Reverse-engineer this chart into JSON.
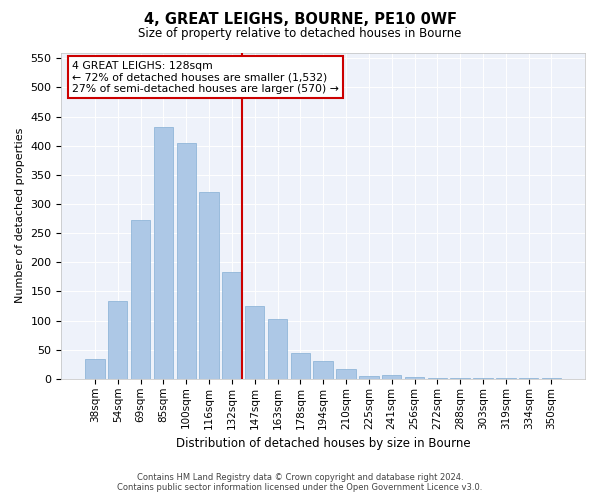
{
  "title": "4, GREAT LEIGHS, BOURNE, PE10 0WF",
  "subtitle": "Size of property relative to detached houses in Bourne",
  "xlabel": "Distribution of detached houses by size in Bourne",
  "ylabel": "Number of detached properties",
  "categories": [
    "38sqm",
    "54sqm",
    "69sqm",
    "85sqm",
    "100sqm",
    "116sqm",
    "132sqm",
    "147sqm",
    "163sqm",
    "178sqm",
    "194sqm",
    "210sqm",
    "225sqm",
    "241sqm",
    "256sqm",
    "272sqm",
    "288sqm",
    "303sqm",
    "319sqm",
    "334sqm",
    "350sqm"
  ],
  "values": [
    35,
    133,
    272,
    433,
    405,
    320,
    183,
    125,
    102,
    45,
    30,
    17,
    5,
    7,
    3,
    2,
    2,
    2,
    2,
    2,
    2
  ],
  "bar_color": "#adc8e6",
  "bar_edge_color": "#85afd4",
  "reference_line_color": "#cc0000",
  "ylim": [
    0,
    560
  ],
  "yticks": [
    0,
    50,
    100,
    150,
    200,
    250,
    300,
    350,
    400,
    450,
    500,
    550
  ],
  "annotation_title": "4 GREAT LEIGHS: 128sqm",
  "annotation_line1": "← 72% of detached houses are smaller (1,532)",
  "annotation_line2": "27% of semi-detached houses are larger (570) →",
  "annotation_box_color": "#cc0000",
  "bg_color": "#eef2fa",
  "footer_line1": "Contains HM Land Registry data © Crown copyright and database right 2024.",
  "footer_line2": "Contains public sector information licensed under the Open Government Licence v3.0."
}
